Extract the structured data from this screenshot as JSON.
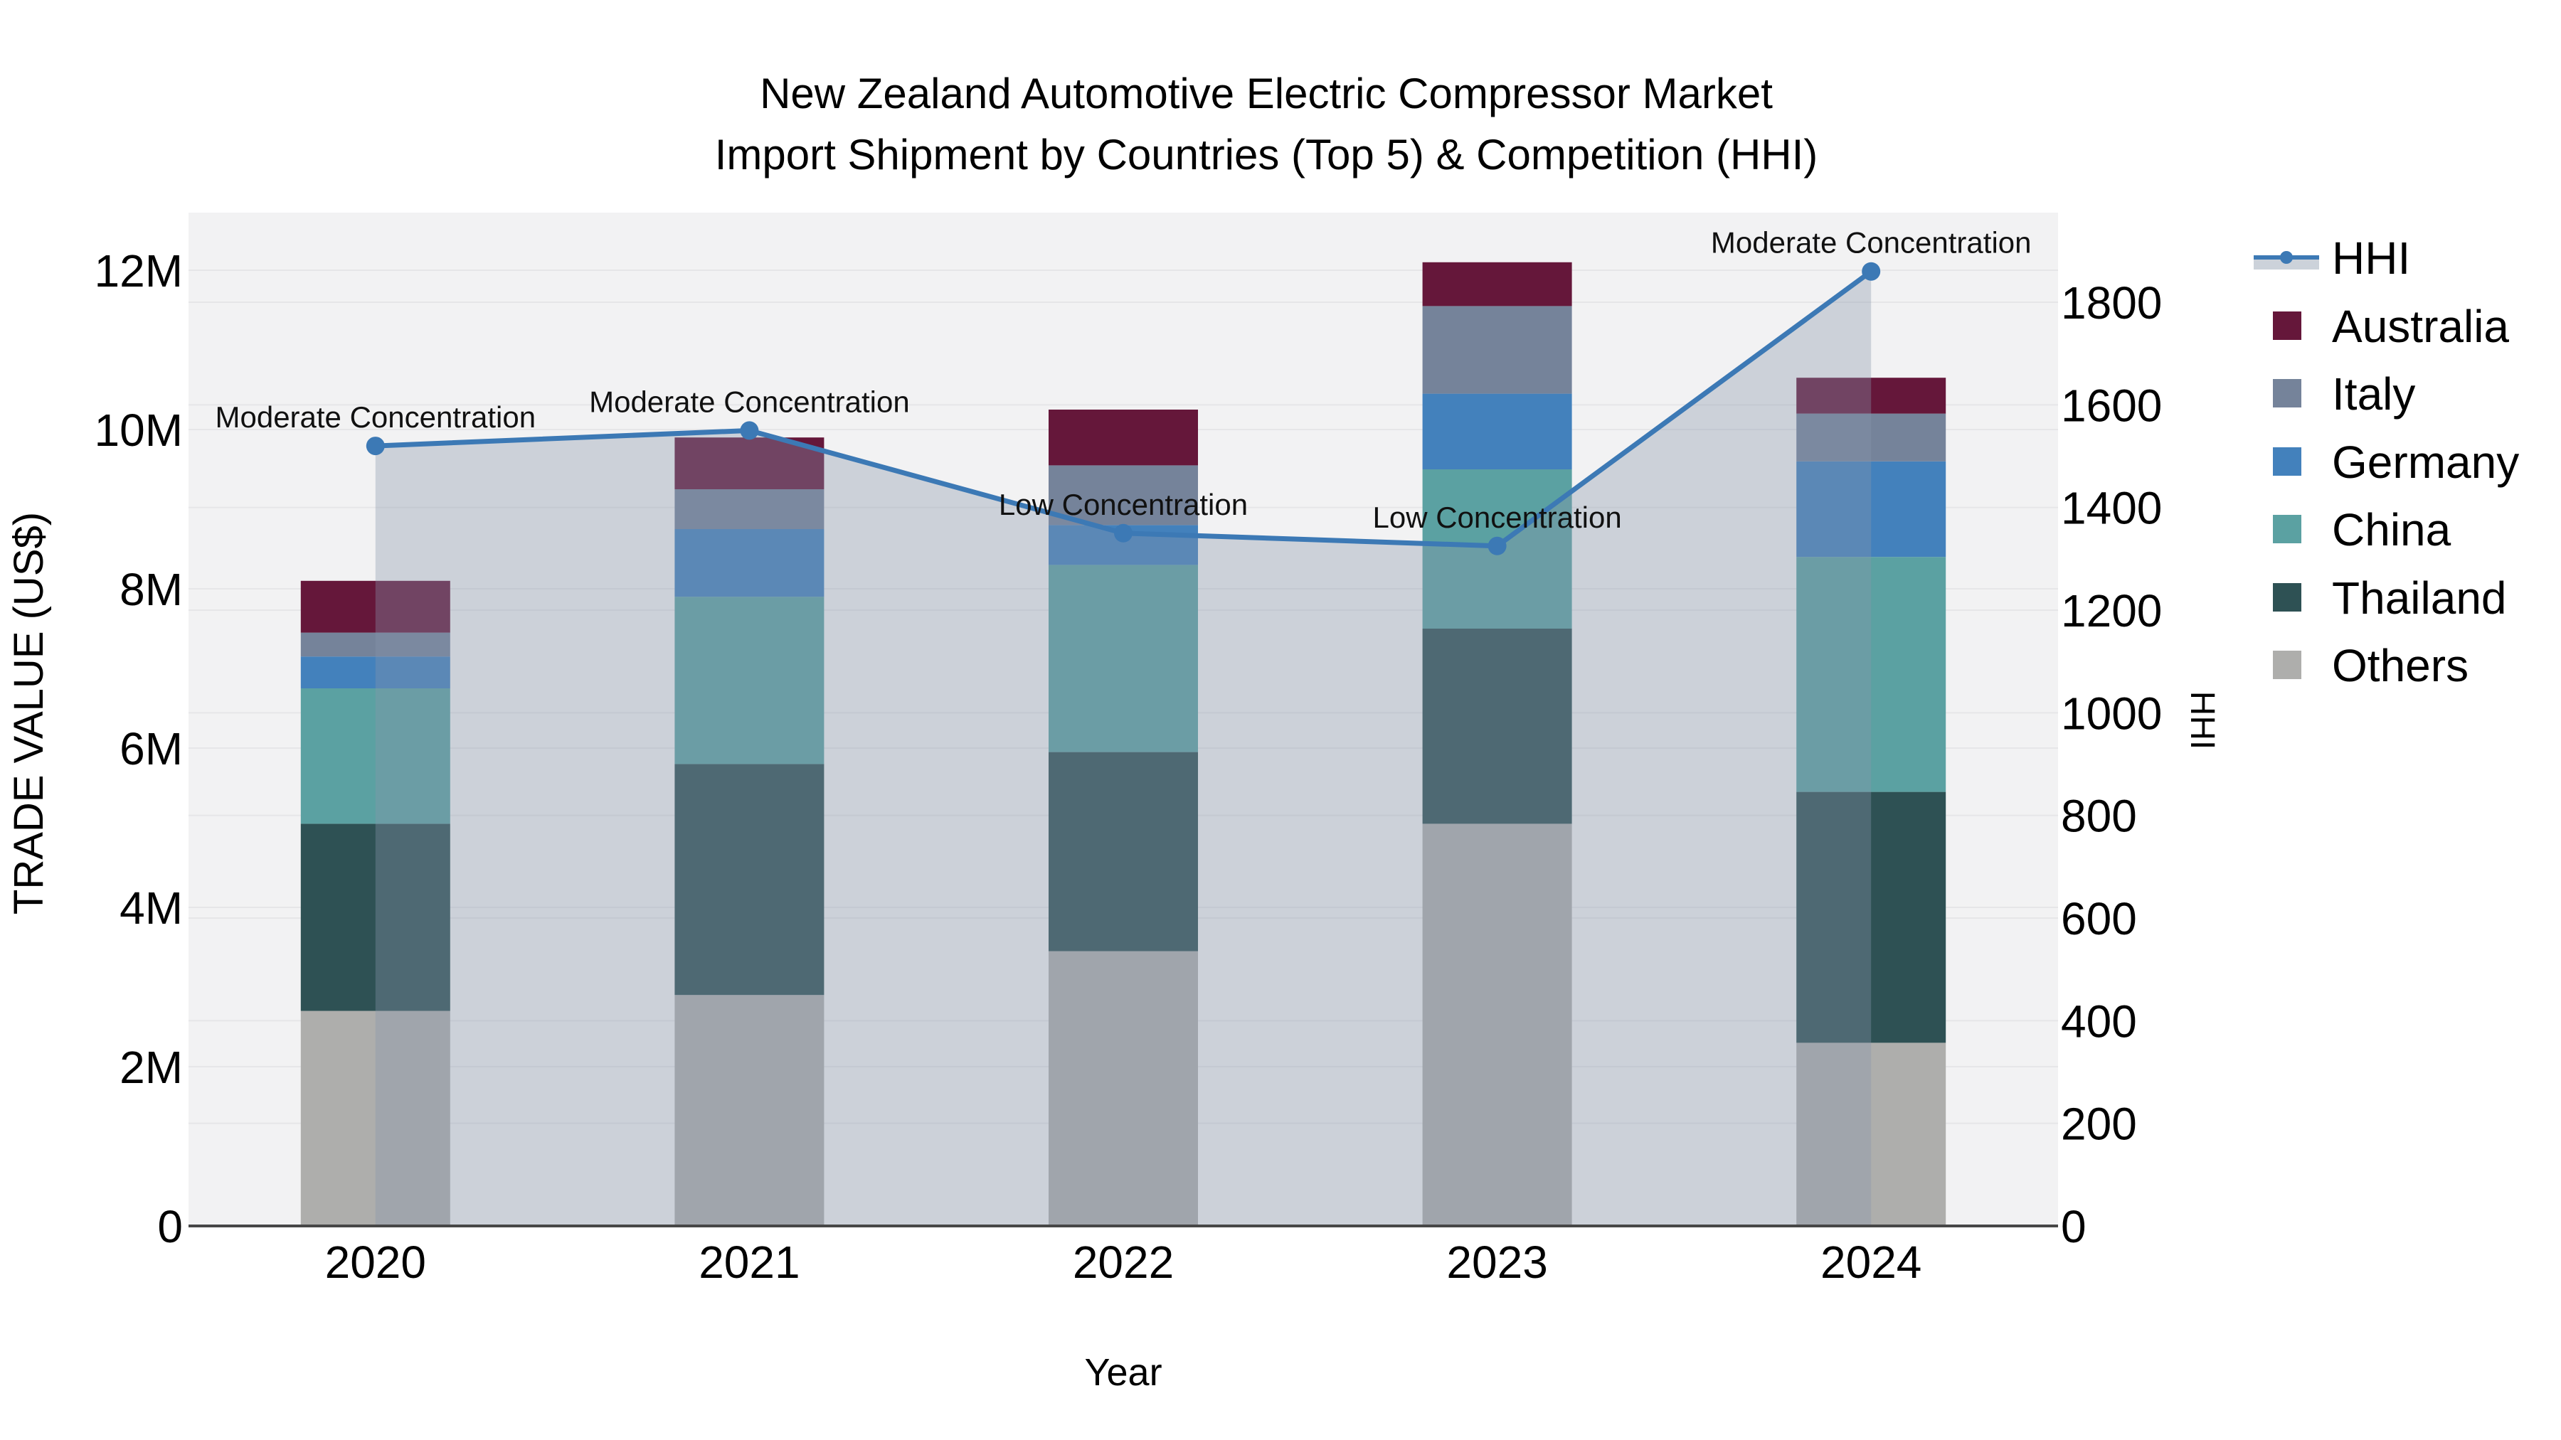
{
  "title": {
    "line1": "New Zealand Automotive Electric Compressor Market",
    "line2": "Import Shipment by Countries (Top 5) & Competition (HHI)"
  },
  "axes": {
    "left": {
      "title": "TRADE VALUE (US$)",
      "tick_labels": [
        "0",
        "2M",
        "4M",
        "6M",
        "8M",
        "10M",
        "12M"
      ],
      "max_millions": 12
    },
    "right": {
      "title": "HHI",
      "tick_labels": [
        "0",
        "200",
        "400",
        "600",
        "800",
        "1000",
        "1200",
        "1400",
        "1600",
        "1800"
      ],
      "max": 1800
    },
    "x": {
      "title": "Year",
      "categories": [
        "2020",
        "2021",
        "2022",
        "2023",
        "2024"
      ]
    }
  },
  "legend": {
    "items": [
      {
        "label": "HHI",
        "type": "line",
        "color": "#3c79b5"
      },
      {
        "label": "Australia",
        "type": "swatch",
        "color": "#65173a"
      },
      {
        "label": "Italy",
        "type": "swatch",
        "color": "#75839a"
      },
      {
        "label": "Germany",
        "type": "swatch",
        "color": "#4381bc"
      },
      {
        "label": "China",
        "type": "swatch",
        "color": "#5ba1a2"
      },
      {
        "label": "Thailand",
        "type": "swatch",
        "color": "#2e5154"
      },
      {
        "label": "Others",
        "type": "swatch",
        "color": "#aeaeac"
      }
    ]
  },
  "chart_data": {
    "type": "bar",
    "subtype": "stacked-bar-with-line",
    "categories": [
      "2020",
      "2021",
      "2022",
      "2023",
      "2024"
    ],
    "value_unit": "US$ millions",
    "series": [
      {
        "name": "Others",
        "color": "#aeaeac",
        "values": [
          2.7,
          2.9,
          3.45,
          5.05,
          2.3
        ]
      },
      {
        "name": "Thailand",
        "color": "#2e5154",
        "values": [
          2.35,
          2.9,
          2.5,
          2.45,
          3.15
        ]
      },
      {
        "name": "China",
        "color": "#5ba1a2",
        "values": [
          1.7,
          2.1,
          2.35,
          2.0,
          2.95
        ]
      },
      {
        "name": "Germany",
        "color": "#4381bc",
        "values": [
          0.4,
          0.85,
          0.5,
          0.95,
          1.2
        ]
      },
      {
        "name": "Italy",
        "color": "#75839a",
        "values": [
          0.3,
          0.5,
          0.75,
          1.1,
          0.6
        ]
      },
      {
        "name": "Australia",
        "color": "#65173a",
        "values": [
          0.65,
          0.65,
          0.7,
          0.55,
          0.45
        ]
      }
    ],
    "line_series": {
      "name": "HHI",
      "color": "#3c79b5",
      "area_fill_color": "rgba(136,150,172,0.36)",
      "values": [
        1520,
        1550,
        1350,
        1325,
        1860
      ]
    },
    "annotations": [
      {
        "category": "2020",
        "text": "Moderate Concentration"
      },
      {
        "category": "2021",
        "text": "Moderate Concentration"
      },
      {
        "category": "2022",
        "text": "Low Concentration"
      },
      {
        "category": "2023",
        "text": "Low Concentration"
      },
      {
        "category": "2024",
        "text": "Moderate Concentration"
      }
    ],
    "title": "New Zealand Automotive Electric Compressor Market Import Shipment by Countries (Top 5) & Competition (HHI)",
    "xlabel": "Year",
    "ylabel_left": "TRADE VALUE (US$)",
    "ylabel_right": "HHI",
    "ylim_left": [
      0,
      12000000
    ],
    "ylim_right": [
      0,
      1800
    ],
    "grid": true,
    "legend_position": "top-right",
    "plot_bg_color": "#f2f2f3",
    "grid_color": "#e6e6e8"
  }
}
